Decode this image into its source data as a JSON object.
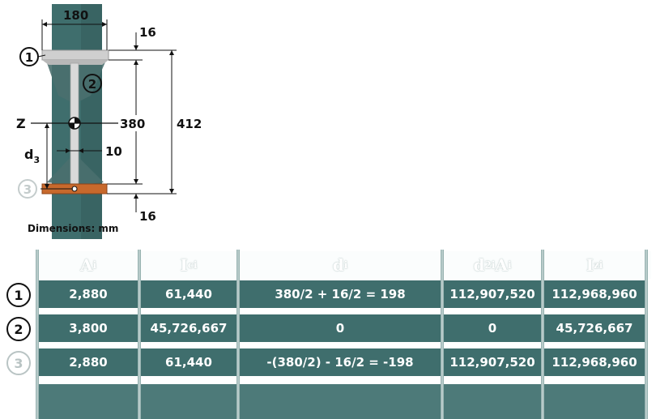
{
  "diagram": {
    "flange_width": "180",
    "flange_thickness_top": "16",
    "flange_thickness_bottom": "16",
    "web_height": "380",
    "total_height": "412",
    "web_thickness": "10",
    "axis_label": "Z",
    "distance_label": "d",
    "distance_subscript": "3",
    "parts": [
      "1",
      "2",
      "3"
    ],
    "units_note": "Dimensions: mm",
    "colors": {
      "column": "#3f6e6d",
      "flange": "#c9c9c9",
      "plate": "#c8692c"
    }
  },
  "table": {
    "headers": [
      {
        "main": "A",
        "sub": "i",
        "sup": ""
      },
      {
        "main": "I",
        "sub": "ci",
        "sup": ""
      },
      {
        "main": "d",
        "sub": "i",
        "sup": ""
      },
      {
        "main": "d",
        "sub": "i",
        "sup": "2",
        "tail": "A",
        "tail_sub": "i"
      },
      {
        "main": "I",
        "sub": "zi",
        "sup": ""
      }
    ],
    "rows": [
      {
        "label": "1",
        "cells": [
          "2,880",
          "61,440",
          "380/2 + 16/2 = 198",
          "112,907,520",
          "112,968,960"
        ]
      },
      {
        "label": "2",
        "cells": [
          "3,800",
          "45,726,667",
          "0",
          "0",
          "45,726,667"
        ]
      },
      {
        "label": "3",
        "cells": [
          "2,880",
          "61,440",
          "-(380/2) - 16/2 = -198",
          "112,907,520",
          "112,968,960"
        ]
      }
    ]
  }
}
